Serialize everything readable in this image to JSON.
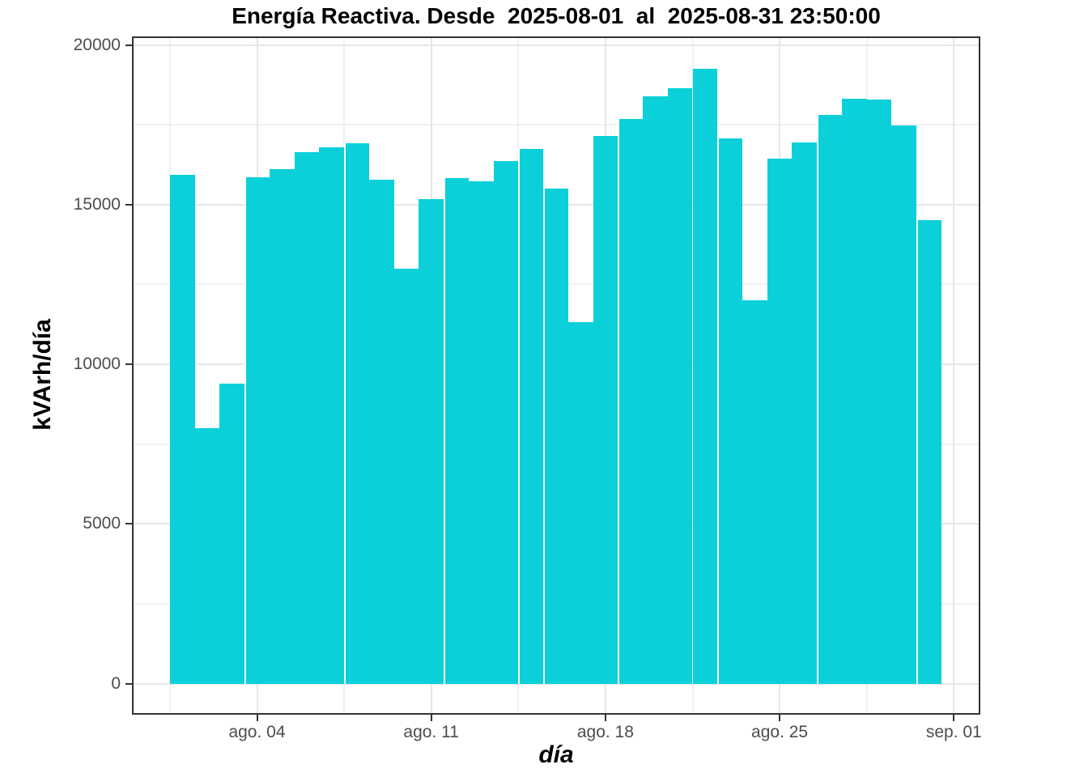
{
  "chart_data": {
    "type": "bar",
    "title": "Energía Reactiva. Desde  2025-08-01  al  2025-08-31 23:50:00",
    "xlabel": "día",
    "ylabel": "kVArh/día",
    "bar_color": "#0bd0da",
    "grid": true,
    "legend": "none",
    "ylim": [
      0,
      20000
    ],
    "y_tick_values": [
      0,
      5000,
      10000,
      15000,
      20000
    ],
    "y_tick_labels": [
      "0",
      "5000",
      "10000",
      "15000",
      "20000"
    ],
    "y_minor_values": [
      2500,
      7500,
      12500,
      17500
    ],
    "x_tick_days": [
      4,
      11,
      18,
      25,
      32
    ],
    "x_tick_labels": [
      "ago. 04",
      "ago. 11",
      "ago. 18",
      "ago. 25",
      "sep. 01"
    ],
    "x_minor_days": [
      0.5,
      7.5,
      14.5,
      21.5,
      28.5
    ],
    "categories": [
      "2025-08-01",
      "2025-08-02",
      "2025-08-03",
      "2025-08-04",
      "2025-08-05",
      "2025-08-06",
      "2025-08-07",
      "2025-08-08",
      "2025-08-09",
      "2025-08-10",
      "2025-08-11",
      "2025-08-12",
      "2025-08-13",
      "2025-08-14",
      "2025-08-15",
      "2025-08-16",
      "2025-08-17",
      "2025-08-18",
      "2025-08-19",
      "2025-08-20",
      "2025-08-21",
      "2025-08-22",
      "2025-08-23",
      "2025-08-24",
      "2025-08-25",
      "2025-08-26",
      "2025-08-27",
      "2025-08-28",
      "2025-08-29",
      "2025-08-30",
      "2025-08-31"
    ],
    "values": [
      15940,
      7990,
      9390,
      15860,
      16110,
      16650,
      16790,
      16930,
      15770,
      13000,
      15170,
      15830,
      15730,
      16370,
      16740,
      15510,
      11310,
      17160,
      17670,
      18390,
      18640,
      19260,
      17080,
      12010,
      16450,
      16950,
      17810,
      18320,
      18280,
      17480,
      14500
    ],
    "white_seam_before_days": [
      4,
      8,
      12,
      15,
      16,
      19,
      23,
      27,
      31
    ]
  }
}
